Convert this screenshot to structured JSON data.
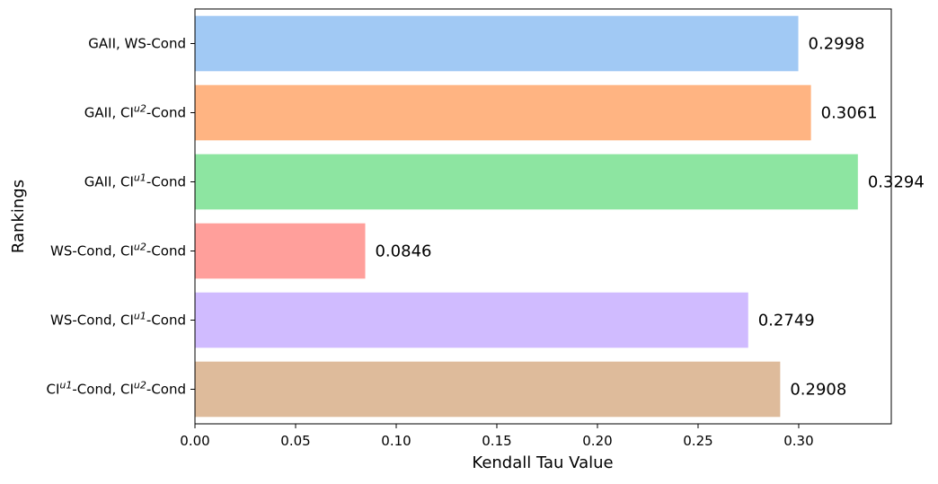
{
  "chart_data": {
    "type": "bar",
    "orientation": "horizontal",
    "xlabel": "Kendall Tau Value",
    "ylabel": "Rankings",
    "xlim": [
      0,
      0.346
    ],
    "xticks": [
      "0.00",
      "0.05",
      "0.10",
      "0.15",
      "0.20",
      "0.25",
      "0.30"
    ],
    "grid": false,
    "categories": [
      {
        "pre": "GAII, WS-Cond",
        "sup1": "",
        "mid": "",
        "sup2": "",
        "post": ""
      },
      {
        "pre": "GAII, CI",
        "sup1": "u2",
        "mid": "-Cond",
        "sup2": "",
        "post": ""
      },
      {
        "pre": "GAII, CI",
        "sup1": "u1",
        "mid": "-Cond",
        "sup2": "",
        "post": ""
      },
      {
        "pre": "WS-Cond, CI",
        "sup1": "u2",
        "mid": "-Cond",
        "sup2": "",
        "post": ""
      },
      {
        "pre": "WS-Cond, CI",
        "sup1": "u1",
        "mid": "-Cond",
        "sup2": "",
        "post": ""
      },
      {
        "pre": "CI",
        "sup1": "u1",
        "mid": "-Cond, CI",
        "sup2": "u2",
        "post": "-Cond"
      }
    ],
    "values": [
      0.2998,
      0.3061,
      0.3294,
      0.0846,
      0.2749,
      0.2908
    ],
    "value_labels": [
      "0.2998",
      "0.3061",
      "0.3294",
      "0.0846",
      "0.2749",
      "0.2908"
    ],
    "colors": [
      "#a1c9f4",
      "#ffb482",
      "#8de5a1",
      "#ff9f9b",
      "#d0bbff",
      "#debb9b"
    ]
  }
}
